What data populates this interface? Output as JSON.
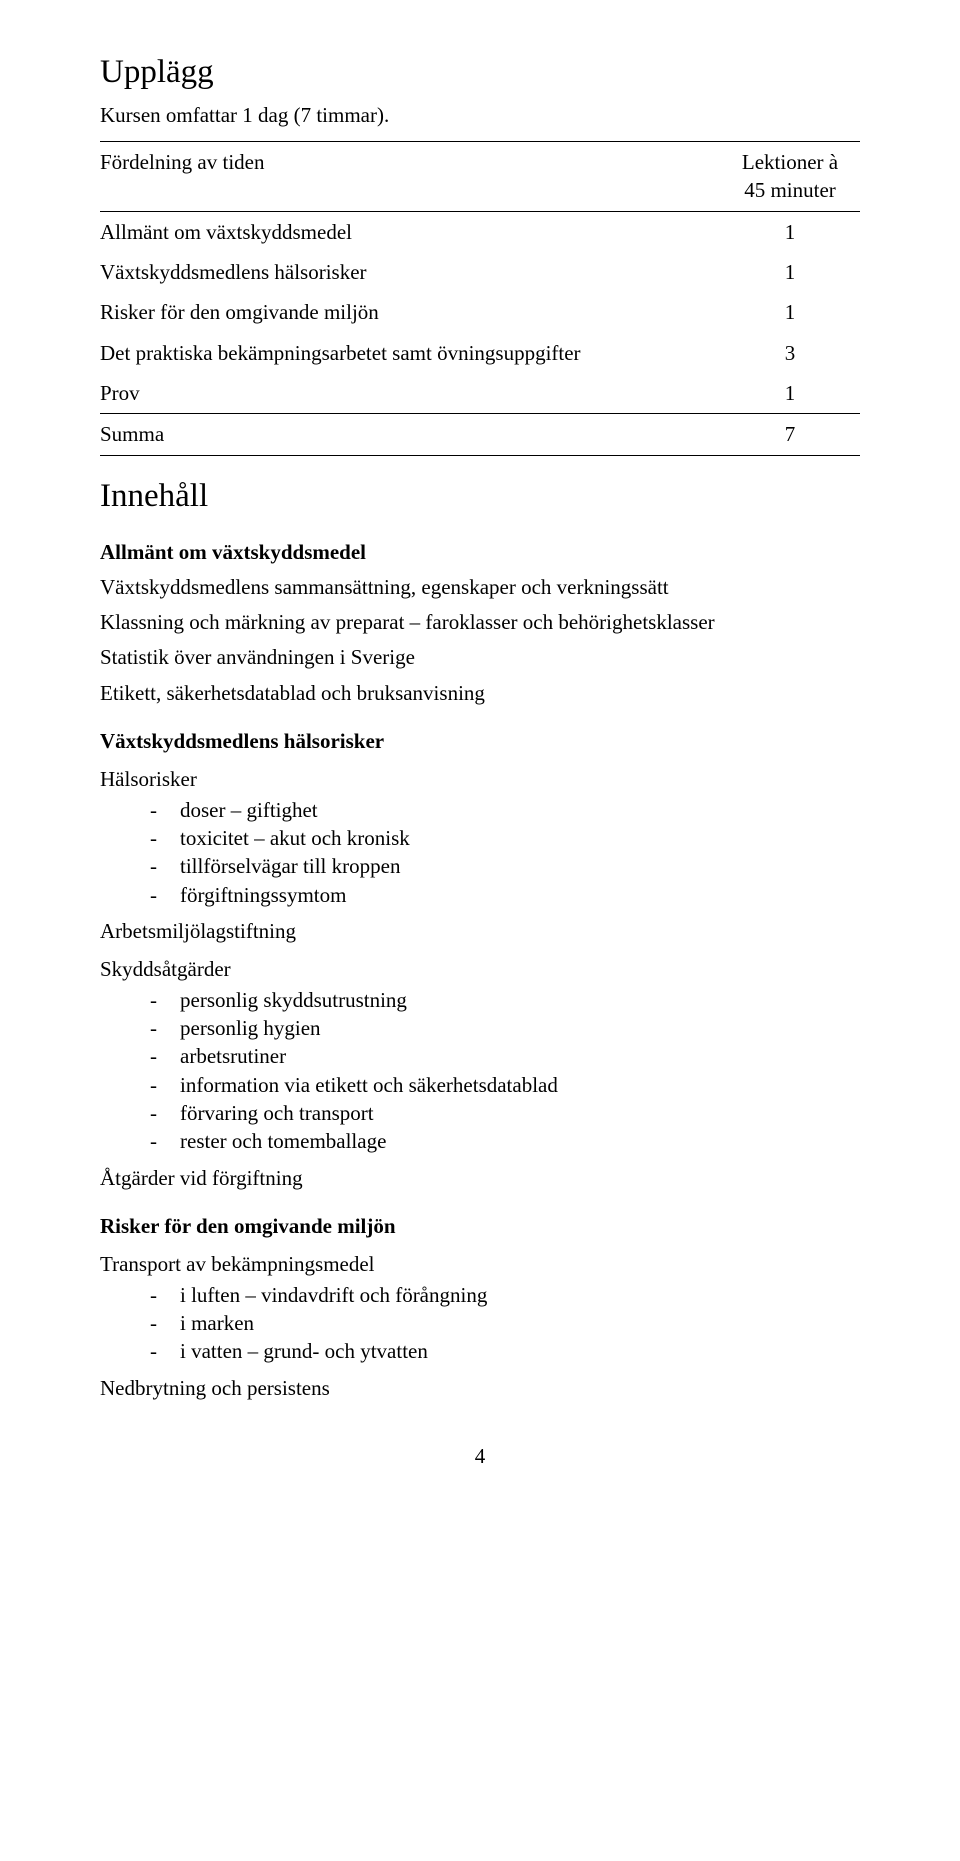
{
  "title_upplagg": "Upplägg",
  "intro_line": "Kursen omfattar 1 dag (7 timmar).",
  "table": {
    "header_left": "Fördelning av tiden",
    "header_right_line1": "Lektioner à",
    "header_right_line2": "45 minuter",
    "rows": [
      {
        "label": "Allmänt om växtskyddsmedel",
        "value": "1"
      },
      {
        "label": "Växtskyddsmedlens hälsorisker",
        "value": "1"
      },
      {
        "label": "Risker för den omgivande miljön",
        "value": "1"
      },
      {
        "label": "Det praktiska bekämpningsarbetet samt övningsuppgifter",
        "value": "3"
      },
      {
        "label": "Prov",
        "value": "1"
      }
    ],
    "sum_label": "Summa",
    "sum_value": "7"
  },
  "title_innehall": "Innehåll",
  "sec1": {
    "heading": "Allmänt om växtskyddsmedel",
    "lines": [
      "Växtskyddsmedlens sammansättning, egenskaper och verkningssätt",
      "Klassning och märkning av preparat – faroklasser och behörighetsklasser",
      "Statistik över användningen i Sverige",
      "Etikett, säkerhetsdatablad och bruksanvisning"
    ]
  },
  "sec2": {
    "heading": "Växtskyddsmedlens hälsorisker",
    "block1_label": "Hälsorisker",
    "block1_items": [
      "doser – giftighet",
      "toxicitet – akut och kronisk",
      "tillförselvägar till kroppen",
      "förgiftningssymtom"
    ],
    "line_arbetsmiljo": "Arbetsmiljölagstiftning",
    "block2_label": "Skyddsåtgärder",
    "block2_items": [
      "personlig skyddsutrustning",
      "personlig hygien",
      "arbetsrutiner",
      "information via etikett och säkerhetsdatablad",
      "förvaring och transport",
      "rester och tomemballage"
    ],
    "line_atgarder": "Åtgärder vid förgiftning"
  },
  "sec3": {
    "heading": "Risker för den omgivande miljön",
    "block1_label": "Transport av bekämpningsmedel",
    "block1_items": [
      "i luften – vindavdrift och förångning",
      "i marken",
      "i vatten – grund- och ytvatten"
    ],
    "line_nedbrytning": "Nedbrytning och persistens"
  },
  "page_number": "4"
}
